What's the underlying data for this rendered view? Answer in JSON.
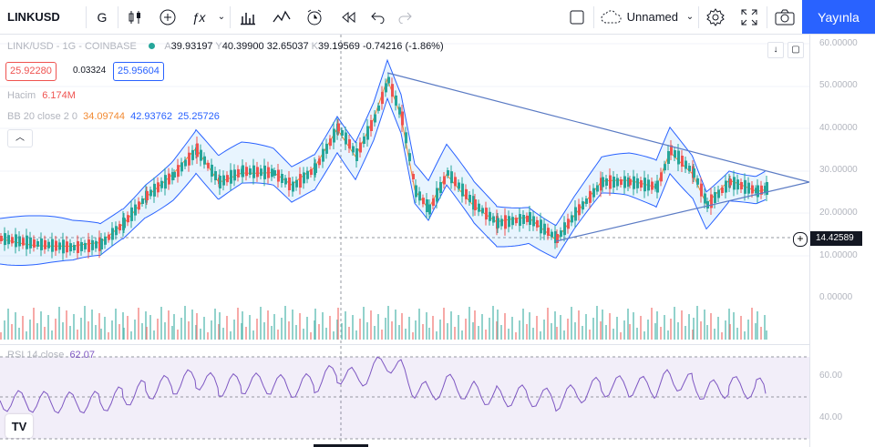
{
  "toolbar": {
    "symbol": "LINKUSD",
    "interval": "G",
    "layout_name": "Unnamed",
    "publish_label": "Yayınla",
    "icons": [
      "candles-icon",
      "add-indicator-icon",
      "fx-icon",
      "chevron-down-icon",
      "bar-chart-icon",
      "indicators-icon",
      "alert-icon",
      "replay-icon",
      "undo-icon",
      "redo-icon",
      "checkbox-icon",
      "cloud-icon",
      "settings-icon",
      "fullscreen-icon",
      "camera-icon"
    ]
  },
  "legend": {
    "title": "LINK/USD - 1G - COINBASE",
    "o_label": "A",
    "o_val": "39.93197",
    "h_label": "Y",
    "h_val": "40.39900",
    "l_val": "32.65037",
    "c_label": "K",
    "c_val": "39.19569",
    "change": "-0.74216 (-1.86%)",
    "bid": "25.92280",
    "spread": "0.03324",
    "ask": "25.95604",
    "volume_label": "Hacim",
    "volume_val": "6.174M",
    "bb_label": "BB 20 close 2 0",
    "bb_basis": "34.09744",
    "bb_upper": "42.93762",
    "bb_lower": "25.25726",
    "rsi_label": "RSI 14 close",
    "rsi_val": "62.07"
  },
  "price_axis": {
    "labels": [
      "60.00000",
      "50.00000",
      "40.00000",
      "30.00000",
      "20.00000",
      "10.00000",
      "0.00000"
    ],
    "current_price": "14.42589",
    "rsi_labels": [
      "60.00",
      "40.00"
    ]
  },
  "colors": {
    "up": "#26a69a",
    "down": "#ef5350",
    "bb_basis": "#f28a32",
    "bb_band": "#2962ff",
    "rsi": "#7e57c2",
    "accent": "#2962ff"
  },
  "logo": "TV"
}
